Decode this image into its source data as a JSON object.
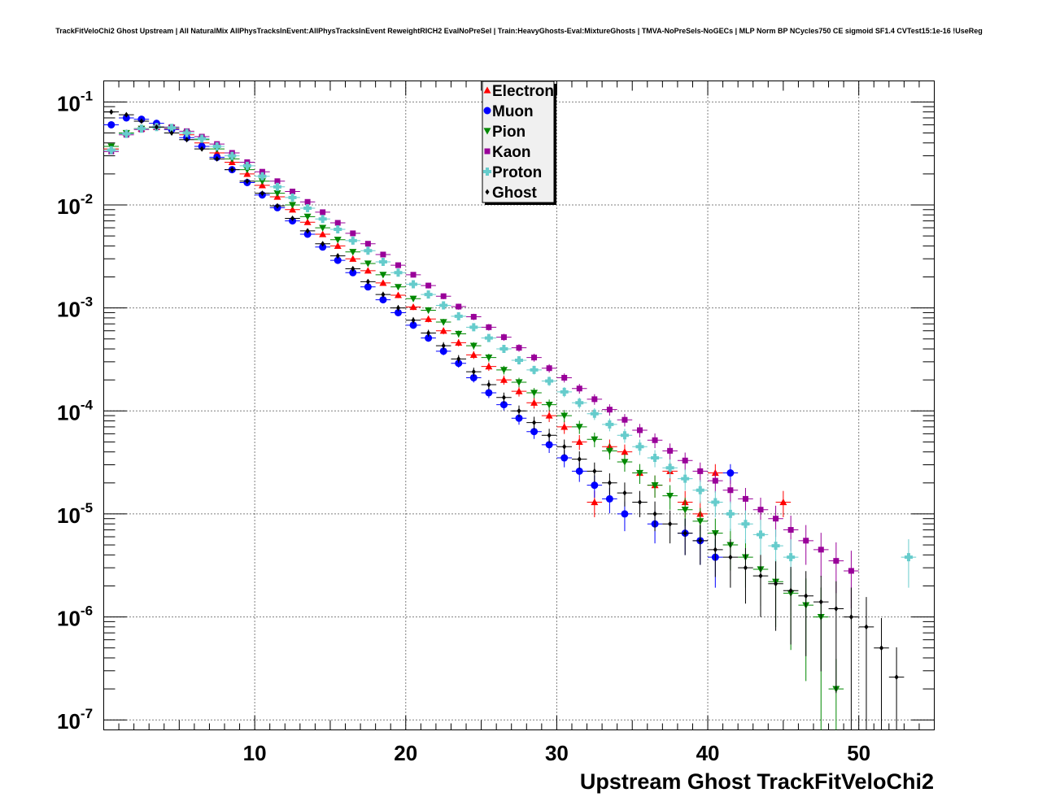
{
  "title": "TrackFitVeloChi2 Ghost Upstream | All NaturalMix AllPhysTracksInEvent:AllPhysTracksInEvent ReweightRICH2 EvalNoPreSel | Train:HeavyGhosts-Eval:MixtureGhosts | TMVA-NoPreSels-NoGECs | MLP Norm BP NCycles750 CE sigmoid SF1.4 CVTest15:1e-16 !UseReg",
  "chart_data": {
    "type": "scatter",
    "xlabel": "Upstream Ghost TrackFitVeloChi2",
    "ylabel": "",
    "xlim": [
      0,
      55
    ],
    "ylim": [
      8e-08,
      0.16
    ],
    "yscale": "log",
    "grid": true,
    "legend_position": "top-center",
    "x_ticks": [
      10,
      20,
      30,
      40,
      50
    ],
    "y_ticks": [
      {
        "value": 1e-07,
        "base": "10",
        "exp": "-7"
      },
      {
        "value": 1e-06,
        "base": "10",
        "exp": "-6"
      },
      {
        "value": 1e-05,
        "base": "10",
        "exp": "-5"
      },
      {
        "value": 0.0001,
        "base": "10",
        "exp": "-4"
      },
      {
        "value": 0.001,
        "base": "10",
        "exp": "-3"
      },
      {
        "value": 0.01,
        "base": "10",
        "exp": "-2"
      },
      {
        "value": 0.1,
        "base": "10",
        "exp": "-1"
      }
    ],
    "series": [
      {
        "name": "Electron",
        "color": "#ff0000",
        "marker": "triangle-up",
        "x": [
          0.5,
          1.5,
          2.5,
          3.5,
          4.5,
          5.5,
          6.5,
          7.5,
          8.5,
          9.5,
          10.5,
          11.5,
          12.5,
          13.5,
          14.5,
          15.5,
          16.5,
          17.5,
          18.5,
          19.5,
          20.5,
          21.5,
          22.5,
          23.5,
          24.5,
          25.5,
          26.5,
          27.5,
          28.5,
          29.5,
          30.5,
          31.5,
          32.5,
          33.5,
          34.5,
          35.5,
          36.5,
          37.5,
          38.5,
          39.5,
          40.5,
          45
        ],
        "y": [
          0.035,
          0.05,
          0.055,
          0.057,
          0.055,
          0.048,
          0.04,
          0.032,
          0.026,
          0.02,
          0.0155,
          0.012,
          0.009,
          0.0068,
          0.0052,
          0.004,
          0.003,
          0.0023,
          0.00175,
          0.00133,
          0.00102,
          0.00078,
          0.0006,
          0.00046,
          0.00035,
          0.00027,
          0.0002,
          0.000155,
          0.00012,
          9e-05,
          7e-05,
          5e-05,
          1.3e-05,
          4.5e-05,
          4e-05,
          2.5e-05,
          1.9e-05,
          2.6e-05,
          1.3e-05,
          1e-05,
          2.5e-05,
          1.3e-05
        ]
      },
      {
        "name": "Muon",
        "color": "#0000ff",
        "marker": "circle",
        "x": [
          0.5,
          1.5,
          2.5,
          3.5,
          4.5,
          5.5,
          6.5,
          7.5,
          8.5,
          9.5,
          10.5,
          11.5,
          12.5,
          13.5,
          14.5,
          15.5,
          16.5,
          17.5,
          18.5,
          19.5,
          20.5,
          21.5,
          22.5,
          23.5,
          24.5,
          25.5,
          26.5,
          27.5,
          28.5,
          29.5,
          30.5,
          31.5,
          32.5,
          33.5,
          34.5,
          36.5,
          38.5,
          39.5,
          40.5,
          41.5
        ],
        "y": [
          0.06,
          0.07,
          0.068,
          0.062,
          0.054,
          0.045,
          0.037,
          0.029,
          0.022,
          0.0165,
          0.0125,
          0.0094,
          0.007,
          0.0052,
          0.0039,
          0.0029,
          0.0022,
          0.0016,
          0.0012,
          0.0009,
          0.00068,
          0.00051,
          0.00038,
          0.00029,
          0.00021,
          0.00015,
          0.000115,
          8.5e-05,
          6.3e-05,
          4.7e-05,
          3.5e-05,
          2.6e-05,
          1.9e-05,
          1.4e-05,
          1e-05,
          8e-06,
          6.5e-06,
          5.5e-06,
          3.8e-06,
          2.5e-05
        ]
      },
      {
        "name": "Pion",
        "color": "#008800",
        "marker": "triangle-down",
        "x": [
          0.5,
          1.5,
          2.5,
          3.5,
          4.5,
          5.5,
          6.5,
          7.5,
          8.5,
          9.5,
          10.5,
          11.5,
          12.5,
          13.5,
          14.5,
          15.5,
          16.5,
          17.5,
          18.5,
          19.5,
          20.5,
          21.5,
          22.5,
          23.5,
          24.5,
          25.5,
          26.5,
          27.5,
          28.5,
          29.5,
          30.5,
          31.5,
          32.5,
          33.5,
          34.5,
          35.5,
          36.5,
          37.5,
          38.5,
          39.5,
          40.5,
          41.5,
          42.5,
          43.5,
          44.5,
          45.5,
          46.5,
          47.5,
          48.5
        ],
        "y": [
          0.037,
          0.05,
          0.055,
          0.057,
          0.056,
          0.05,
          0.043,
          0.035,
          0.028,
          0.022,
          0.017,
          0.013,
          0.01,
          0.0077,
          0.006,
          0.0046,
          0.0035,
          0.0027,
          0.0021,
          0.0016,
          0.00123,
          0.00095,
          0.00073,
          0.00056,
          0.00043,
          0.00033,
          0.00025,
          0.00019,
          0.00015,
          0.000115,
          9e-05,
          7e-05,
          5.3e-05,
          4.1e-05,
          3.2e-05,
          2.5e-05,
          1.9e-05,
          1.5e-05,
          1.1e-05,
          8.5e-06,
          6.5e-06,
          5e-06,
          3.8e-06,
          2.9e-06,
          2.2e-06,
          1.7e-06,
          1.3e-06,
          1e-06,
          2e-07
        ]
      },
      {
        "name": "Kaon",
        "color": "#990099",
        "marker": "square",
        "x": [
          0.5,
          1.5,
          2.5,
          3.5,
          4.5,
          5.5,
          6.5,
          7.5,
          8.5,
          9.5,
          10.5,
          11.5,
          12.5,
          13.5,
          14.5,
          15.5,
          16.5,
          17.5,
          18.5,
          19.5,
          20.5,
          21.5,
          22.5,
          23.5,
          24.5,
          25.5,
          26.5,
          27.5,
          28.5,
          29.5,
          30.5,
          31.5,
          32.5,
          33.5,
          34.5,
          35.5,
          36.5,
          37.5,
          38.5,
          39.5,
          40.5,
          41.5,
          42.5,
          43.5,
          44.5,
          45.5,
          46.5,
          47.5,
          48.5,
          49.5
        ],
        "y": [
          0.033,
          0.048,
          0.054,
          0.057,
          0.057,
          0.052,
          0.046,
          0.039,
          0.032,
          0.026,
          0.021,
          0.017,
          0.0135,
          0.0107,
          0.0085,
          0.0067,
          0.0053,
          0.0042,
          0.0033,
          0.0026,
          0.0021,
          0.00165,
          0.0013,
          0.00103,
          0.00082,
          0.00065,
          0.00052,
          0.00041,
          0.00033,
          0.00026,
          0.00021,
          0.000165,
          0.00013,
          0.000103,
          8.2e-05,
          6.5e-05,
          5.2e-05,
          4.1e-05,
          3.3e-05,
          2.6e-05,
          2.1e-05,
          1.7e-05,
          1.4e-05,
          1.1e-05,
          9e-06,
          7e-06,
          5.5e-06,
          4.5e-06,
          3.5e-06,
          2.8e-06
        ]
      },
      {
        "name": "Proton",
        "color": "#66cccc",
        "marker": "cross",
        "x": [
          0.5,
          1.5,
          2.5,
          3.5,
          4.5,
          5.5,
          6.5,
          7.5,
          8.5,
          9.5,
          10.5,
          11.5,
          12.5,
          13.5,
          14.5,
          15.5,
          16.5,
          17.5,
          18.5,
          19.5,
          20.5,
          21.5,
          22.5,
          23.5,
          24.5,
          25.5,
          26.5,
          27.5,
          28.5,
          29.5,
          30.5,
          31.5,
          32.5,
          33.5,
          34.5,
          35.5,
          36.5,
          37.5,
          38.5,
          39.5,
          40.5,
          41.5,
          42.5,
          43.5,
          44.5,
          45.5,
          53.3
        ],
        "y": [
          0.034,
          0.049,
          0.055,
          0.057,
          0.056,
          0.05,
          0.044,
          0.037,
          0.03,
          0.024,
          0.019,
          0.015,
          0.0118,
          0.0093,
          0.0073,
          0.0058,
          0.0045,
          0.0036,
          0.0028,
          0.0022,
          0.0017,
          0.00135,
          0.00106,
          0.00083,
          0.00065,
          0.00051,
          0.0004,
          0.00031,
          0.00025,
          0.000195,
          0.000153,
          0.00012,
          9.4e-05,
          7.4e-05,
          5.8e-05,
          4.5e-05,
          3.5e-05,
          2.8e-05,
          2.2e-05,
          1.7e-05,
          1.3e-05,
          1e-05,
          8e-06,
          6.3e-06,
          4.9e-06,
          3.8e-06,
          3.8e-06
        ]
      },
      {
        "name": "Ghost",
        "color": "#000000",
        "marker": "diamond",
        "x": [
          0.5,
          1.5,
          2.5,
          3.5,
          4.5,
          5.5,
          6.5,
          7.5,
          8.5,
          9.5,
          10.5,
          11.5,
          12.5,
          13.5,
          14.5,
          15.5,
          16.5,
          17.5,
          18.5,
          19.5,
          20.5,
          21.5,
          22.5,
          23.5,
          24.5,
          25.5,
          26.5,
          27.5,
          28.5,
          29.5,
          30.5,
          31.5,
          32.5,
          33.5,
          34.5,
          35.5,
          36.5,
          37.5,
          38.5,
          39.5,
          40.5,
          41.5,
          42.5,
          43.5,
          44.5,
          45.5,
          46.5,
          47.5,
          48.5,
          49.5,
          50.5,
          51.5,
          52.5
        ],
        "y": [
          0.08,
          0.075,
          0.065,
          0.057,
          0.05,
          0.043,
          0.035,
          0.028,
          0.022,
          0.017,
          0.013,
          0.0098,
          0.0074,
          0.0056,
          0.0042,
          0.0032,
          0.0024,
          0.0018,
          0.00135,
          0.001,
          0.00076,
          0.00057,
          0.00043,
          0.00032,
          0.00024,
          0.00018,
          0.000135,
          0.0001,
          7.7e-05,
          5.8e-05,
          4.5e-05,
          3.4e-05,
          2.6e-05,
          2e-05,
          1.6e-05,
          1.3e-05,
          1e-05,
          8e-06,
          6.5e-06,
          5.5e-06,
          4.5e-06,
          3.8e-06,
          3e-06,
          2.5e-06,
          2.1e-06,
          1.8e-06,
          1.6e-06,
          1.4e-06,
          1.2e-06,
          1e-06,
          8e-07,
          5e-07,
          2.6e-07
        ]
      }
    ]
  }
}
